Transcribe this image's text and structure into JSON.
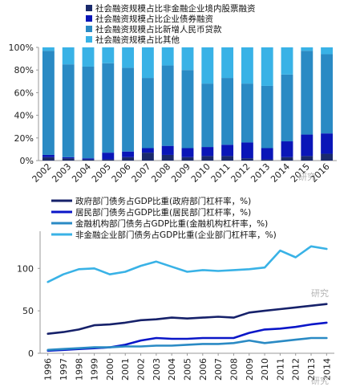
{
  "chart_data": [
    {
      "type": "bar",
      "stacked": true,
      "categories": [
        "2002",
        "2003",
        "2004",
        "2005",
        "2006",
        "2007",
        "2008",
        "2009",
        "2010",
        "2011",
        "2012",
        "2013",
        "2014",
        "2015",
        "2016"
      ],
      "series": [
        {
          "name": "社会融资规模占比非金融企业境内股票融资",
          "color": "#1a2a6c",
          "values": [
            3,
            2,
            1,
            1,
            3,
            7,
            5,
            3,
            4,
            4,
            2,
            1,
            3,
            4,
            6
          ]
        },
        {
          "name": "社会融资规模占比企业债券融资",
          "color": "#0a16b8",
          "values": [
            2,
            1,
            1,
            6,
            5,
            4,
            8,
            8,
            8,
            10,
            14,
            10,
            14,
            19,
            18
          ]
        },
        {
          "name": "社会融资规模占比新增人民币贷款",
          "color": "#2a8ac4",
          "values": [
            92,
            82,
            81,
            79,
            74,
            62,
            71,
            69,
            56,
            59,
            52,
            55,
            59,
            74,
            70
          ]
        },
        {
          "name": "社会融资规模占比其他",
          "color": "#39b2e6",
          "values": [
            3,
            15,
            17,
            14,
            18,
            27,
            16,
            20,
            32,
            27,
            32,
            34,
            24,
            3,
            6
          ]
        }
      ],
      "yticks": [
        "0%",
        "20%",
        "40%",
        "60%",
        "80%",
        "100%"
      ],
      "ylim": [
        0,
        100
      ],
      "legend": "top-left",
      "grid": false
    },
    {
      "type": "line",
      "x": [
        "1996",
        "1997",
        "1998",
        "1999",
        "2000",
        "2001",
        "2002",
        "2003",
        "2004",
        "2005",
        "2006",
        "2007",
        "2008",
        "2009",
        "2010",
        "2011",
        "2012",
        "2013",
        "2014"
      ],
      "series": [
        {
          "name": "政府部门债务占GDP比重(政府部门杠杆率，%)",
          "color": "#16216a",
          "values": [
            23,
            25,
            28,
            33,
            34,
            36,
            39,
            40,
            42,
            41,
            42,
            43,
            42,
            48,
            50,
            52,
            54,
            56,
            58
          ]
        },
        {
          "name": "居民部门债务占GDP比重(居民部门杠杆率，%)",
          "color": "#0a16c8",
          "values": [
            3,
            4,
            5,
            6,
            7,
            10,
            15,
            18,
            17,
            17,
            18,
            18,
            18,
            24,
            28,
            29,
            31,
            34,
            36
          ]
        },
        {
          "name": "金融机构部门债务占GDP比重(金融机构杠杆率，%)",
          "color": "#2a8ac4",
          "values": [
            4,
            5,
            6,
            7,
            7,
            8,
            8,
            9,
            9,
            10,
            11,
            11,
            12,
            15,
            12,
            14,
            16,
            18,
            18
          ]
        },
        {
          "name": "非金融企业部门债务占GDP比重(企业部门杠杆率，%)",
          "color": "#39b2e6",
          "values": [
            84,
            93,
            99,
            100,
            93,
            96,
            103,
            108,
            102,
            96,
            98,
            97,
            98,
            99,
            101,
            121,
            113,
            126,
            123
          ]
        }
      ],
      "yticks": [
        "0",
        "50",
        "100"
      ],
      "ylim": [
        0,
        140
      ],
      "legend": "top-left",
      "grid": false
    }
  ],
  "watermarks": [
    "研究",
    "研究",
    "研究"
  ]
}
